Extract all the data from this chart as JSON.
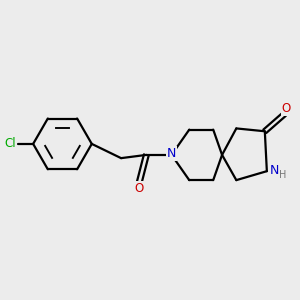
{
  "bg_color": "#ececec",
  "bond_color": "#000000",
  "bond_width": 1.6,
  "atom_colors": {
    "Cl": "#00aa00",
    "N": "#0000cc",
    "O": "#cc0000",
    "H": "#777777",
    "C": "#000000"
  },
  "font_size_atom": 8.5,
  "font_size_H": 7.0
}
